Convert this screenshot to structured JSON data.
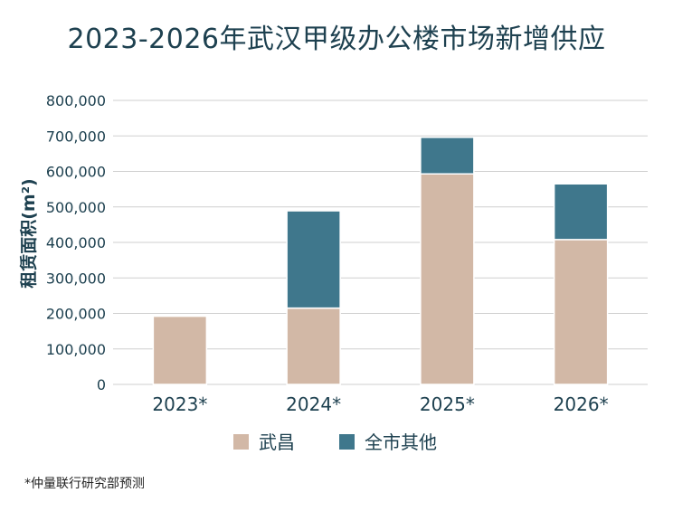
{
  "chart_data": {
    "type": "bar",
    "stacked": true,
    "title": "2023-2026年武汉甲级办公楼市场新增供应",
    "ylabel": "租赁面积(m²)",
    "xlabel": "",
    "categories": [
      "2023*",
      "2024*",
      "2025*",
      "2026*"
    ],
    "series": [
      {
        "name": "武昌",
        "color": "#d2b8a6",
        "values": [
          192000,
          215000,
          593000,
          408000
        ]
      },
      {
        "name": "全市其他",
        "color": "#3f778c",
        "values": [
          0,
          274000,
          103000,
          157000
        ]
      }
    ],
    "ylim": [
      0,
      800000
    ],
    "yticks": [
      0,
      100000,
      200000,
      300000,
      400000,
      500000,
      600000,
      700000,
      800000
    ],
    "ytick_labels": [
      "0",
      "100,000",
      "200,000",
      "300,000",
      "400,000",
      "500,000",
      "600,000",
      "700,000",
      "800,000"
    ],
    "grid": true,
    "legend_position": "bottom-center"
  },
  "footnote": "*仲量联行研究部预测"
}
